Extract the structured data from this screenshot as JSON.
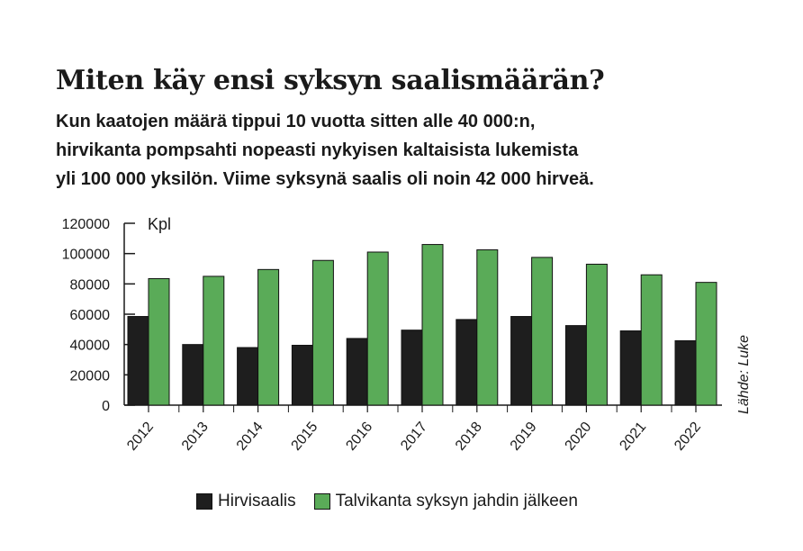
{
  "title": "Miten käy ensi syksyn saalismäärän?",
  "subtitle_lines": [
    "Kun kaatojen määrä tippui 10 vuotta sitten alle 40 000:n,",
    "hirvikanta pompsahti nopeasti nykyisen kaltaisista lukemista",
    "yli 100 000 yksilön. Viime syksynä saalis oli noin 42 000 hirveä."
  ],
  "source": "Lähde: Luke",
  "chart_data": {
    "type": "bar",
    "ylabel": "Kpl",
    "ylim": [
      0,
      120000
    ],
    "yticks": [
      "0",
      "20000",
      "40000",
      "60000",
      "80000",
      "100000",
      "120000"
    ],
    "categories": [
      "2012",
      "2013",
      "2014",
      "2015",
      "2016",
      "2017",
      "2018",
      "2019",
      "2020",
      "2021",
      "2022"
    ],
    "series": [
      {
        "name": "Hirvisaalis",
        "color": "#1e1e1e",
        "values": [
          58500,
          40000,
          38000,
          39500,
          44000,
          49500,
          56500,
          58500,
          52500,
          49000,
          42500
        ]
      },
      {
        "name": "Talvikanta syksyn jahdin jälkeen",
        "color": "#5aab58",
        "values": [
          83500,
          85000,
          89500,
          95500,
          101000,
          106000,
          102500,
          97500,
          93000,
          86000,
          81000
        ]
      }
    ],
    "legend_position": "bottom",
    "grid": false
  }
}
